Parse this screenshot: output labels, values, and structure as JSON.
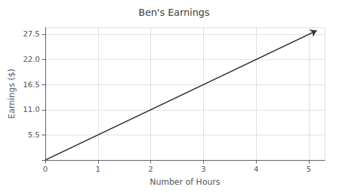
{
  "chart_data": {
    "type": "line",
    "title": "Ben's Earnings",
    "xlabel": "Number of Hours",
    "ylabel": "Earnings ($)",
    "x": [
      0,
      5.15
    ],
    "values": [
      0,
      28.325
    ],
    "color": "#333333",
    "xlim": [
      0,
      5.3
    ],
    "xticks": [
      0,
      1,
      2,
      3,
      4,
      5
    ],
    "ylim": [
      0,
      29
    ],
    "yticks": [
      5.5,
      {
        "value": 11,
        "label": "11.0"
      },
      16.5,
      {
        "value": 22,
        "label": "22.0"
      },
      27.5
    ],
    "grid": true
  }
}
